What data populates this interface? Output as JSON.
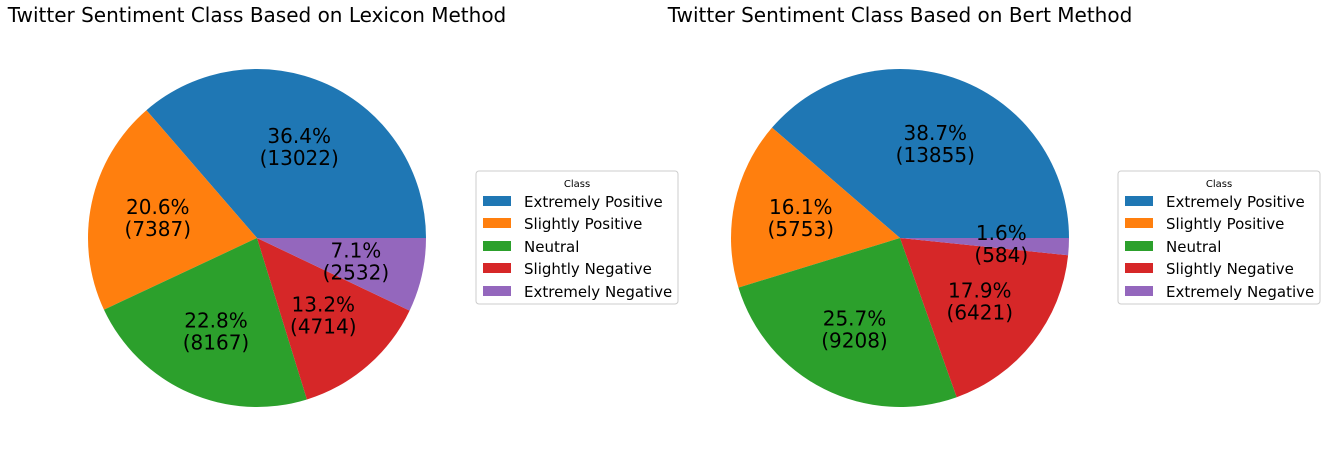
{
  "chart_data": [
    {
      "type": "pie",
      "title": "Twitter Sentiment Class Based on Lexicon Method",
      "categories": [
        "Extremely Positive",
        "Slightly Positive",
        "Neutral",
        "Slightly Negative",
        "Extremely Negative"
      ],
      "values": [
        13022,
        7387,
        8167,
        4714,
        2532
      ],
      "percent_labels": [
        "36.4%",
        "20.6%",
        "22.8%",
        "13.2%",
        "7.1%"
      ],
      "count_labels": [
        "(13022)",
        "(7387)",
        "(8167)",
        "(4714)",
        "(2532)"
      ],
      "colors": [
        "#1f77b4",
        "#ff7f0e",
        "#2ca02c",
        "#d62728",
        "#9467bd"
      ],
      "legend": {
        "title": "Class",
        "placement": "right",
        "entries": [
          "Extremely Positive",
          "Slightly Positive",
          "Neutral",
          "Slightly Negative",
          "Extremely Negative"
        ]
      }
    },
    {
      "type": "pie",
      "title": "Twitter Sentiment Class Based on Bert Method",
      "categories": [
        "Extremely Positive",
        "Slightly Positive",
        "Neutral",
        "Slightly Negative",
        "Extremely Negative"
      ],
      "values": [
        13855,
        5753,
        9208,
        6421,
        584
      ],
      "percent_labels": [
        "38.7%",
        "16.1%",
        "25.7%",
        "17.9%",
        "1.6%"
      ],
      "count_labels": [
        "(13855)",
        "(5753)",
        "(9208)",
        "(6421)",
        "(584)"
      ],
      "colors": [
        "#1f77b4",
        "#ff7f0e",
        "#2ca02c",
        "#d62728",
        "#9467bd"
      ],
      "legend": {
        "title": "Class",
        "placement": "right",
        "entries": [
          "Extremely Positive",
          "Slightly Positive",
          "Neutral",
          "Slightly Negative",
          "Extremely Negative"
        ]
      }
    }
  ]
}
